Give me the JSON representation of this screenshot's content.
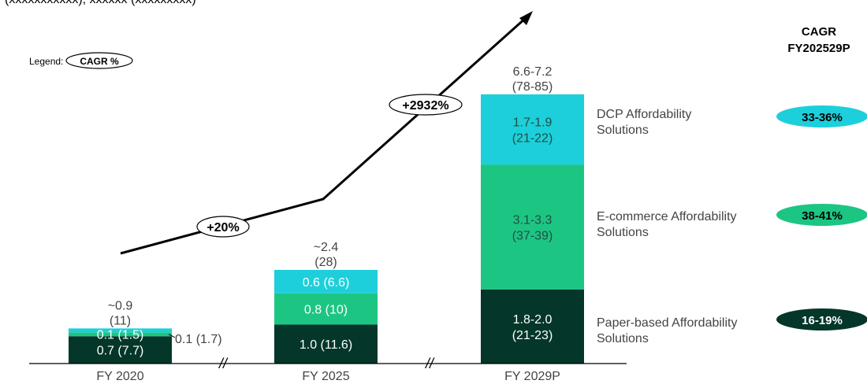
{
  "header_fragment": "(xxxxxxxxxxx), xxxxxx (xxxxxxxxx)",
  "legend": {
    "label": "Legend:",
    "pill": "CAGR %"
  },
  "cagr_header": {
    "line1": "CAGR",
    "line2": "FY202529P"
  },
  "colors": {
    "paper": "#04362A",
    "ecommerce": "#1DC583",
    "dcp": "#1DCFDA",
    "axis": "#000000",
    "label_gray": "#444444"
  },
  "chart_data": {
    "type": "bar",
    "stacked": true,
    "categories": [
      "FY 2020",
      "FY 2025",
      "FY 2029P"
    ],
    "ylim": [
      0,
      7.2
    ],
    "series": [
      {
        "name": "Paper-based Affordability Solutions",
        "segment_key": "paper",
        "values": [
          0.7,
          1.0,
          1.9
        ],
        "labels": [
          "0.7 (7.7)",
          "1.0 (11.6)",
          "1.8-2.0 (21-23)"
        ]
      },
      {
        "name": "E-commerce Affordability Solutions",
        "segment_key": "ecommerce",
        "values": [
          0.1,
          0.8,
          3.2
        ],
        "labels": [
          "0.1 (1.7)",
          "0.8 (10)",
          "3.1-3.3 (37-39)"
        ]
      },
      {
        "name": "DCP Affordability Solutions",
        "segment_key": "dcp",
        "values": [
          0.1,
          0.6,
          1.8
        ],
        "labels": [
          "0.1 (1.5)",
          "0.6 (6.6)",
          "1.7-1.9 (21-22)"
        ]
      }
    ],
    "totals": [
      {
        "line1": "~0.9",
        "line2": "(11)"
      },
      {
        "line1": "~2.4",
        "line2": "(28)"
      },
      {
        "line1": "6.6-7.2",
        "line2": "(78-85)"
      }
    ],
    "growth": [
      "+20%",
      "+2932%"
    ],
    "axis_break": "//",
    "cagr": [
      {
        "series": "DCP Affordability Solutions",
        "value": "33-36%"
      },
      {
        "series": "E-commerce Affordability Solutions",
        "value": "38-41%"
      },
      {
        "series": "Paper-based Affordability Solutions",
        "value": "16-19%"
      }
    ]
  }
}
